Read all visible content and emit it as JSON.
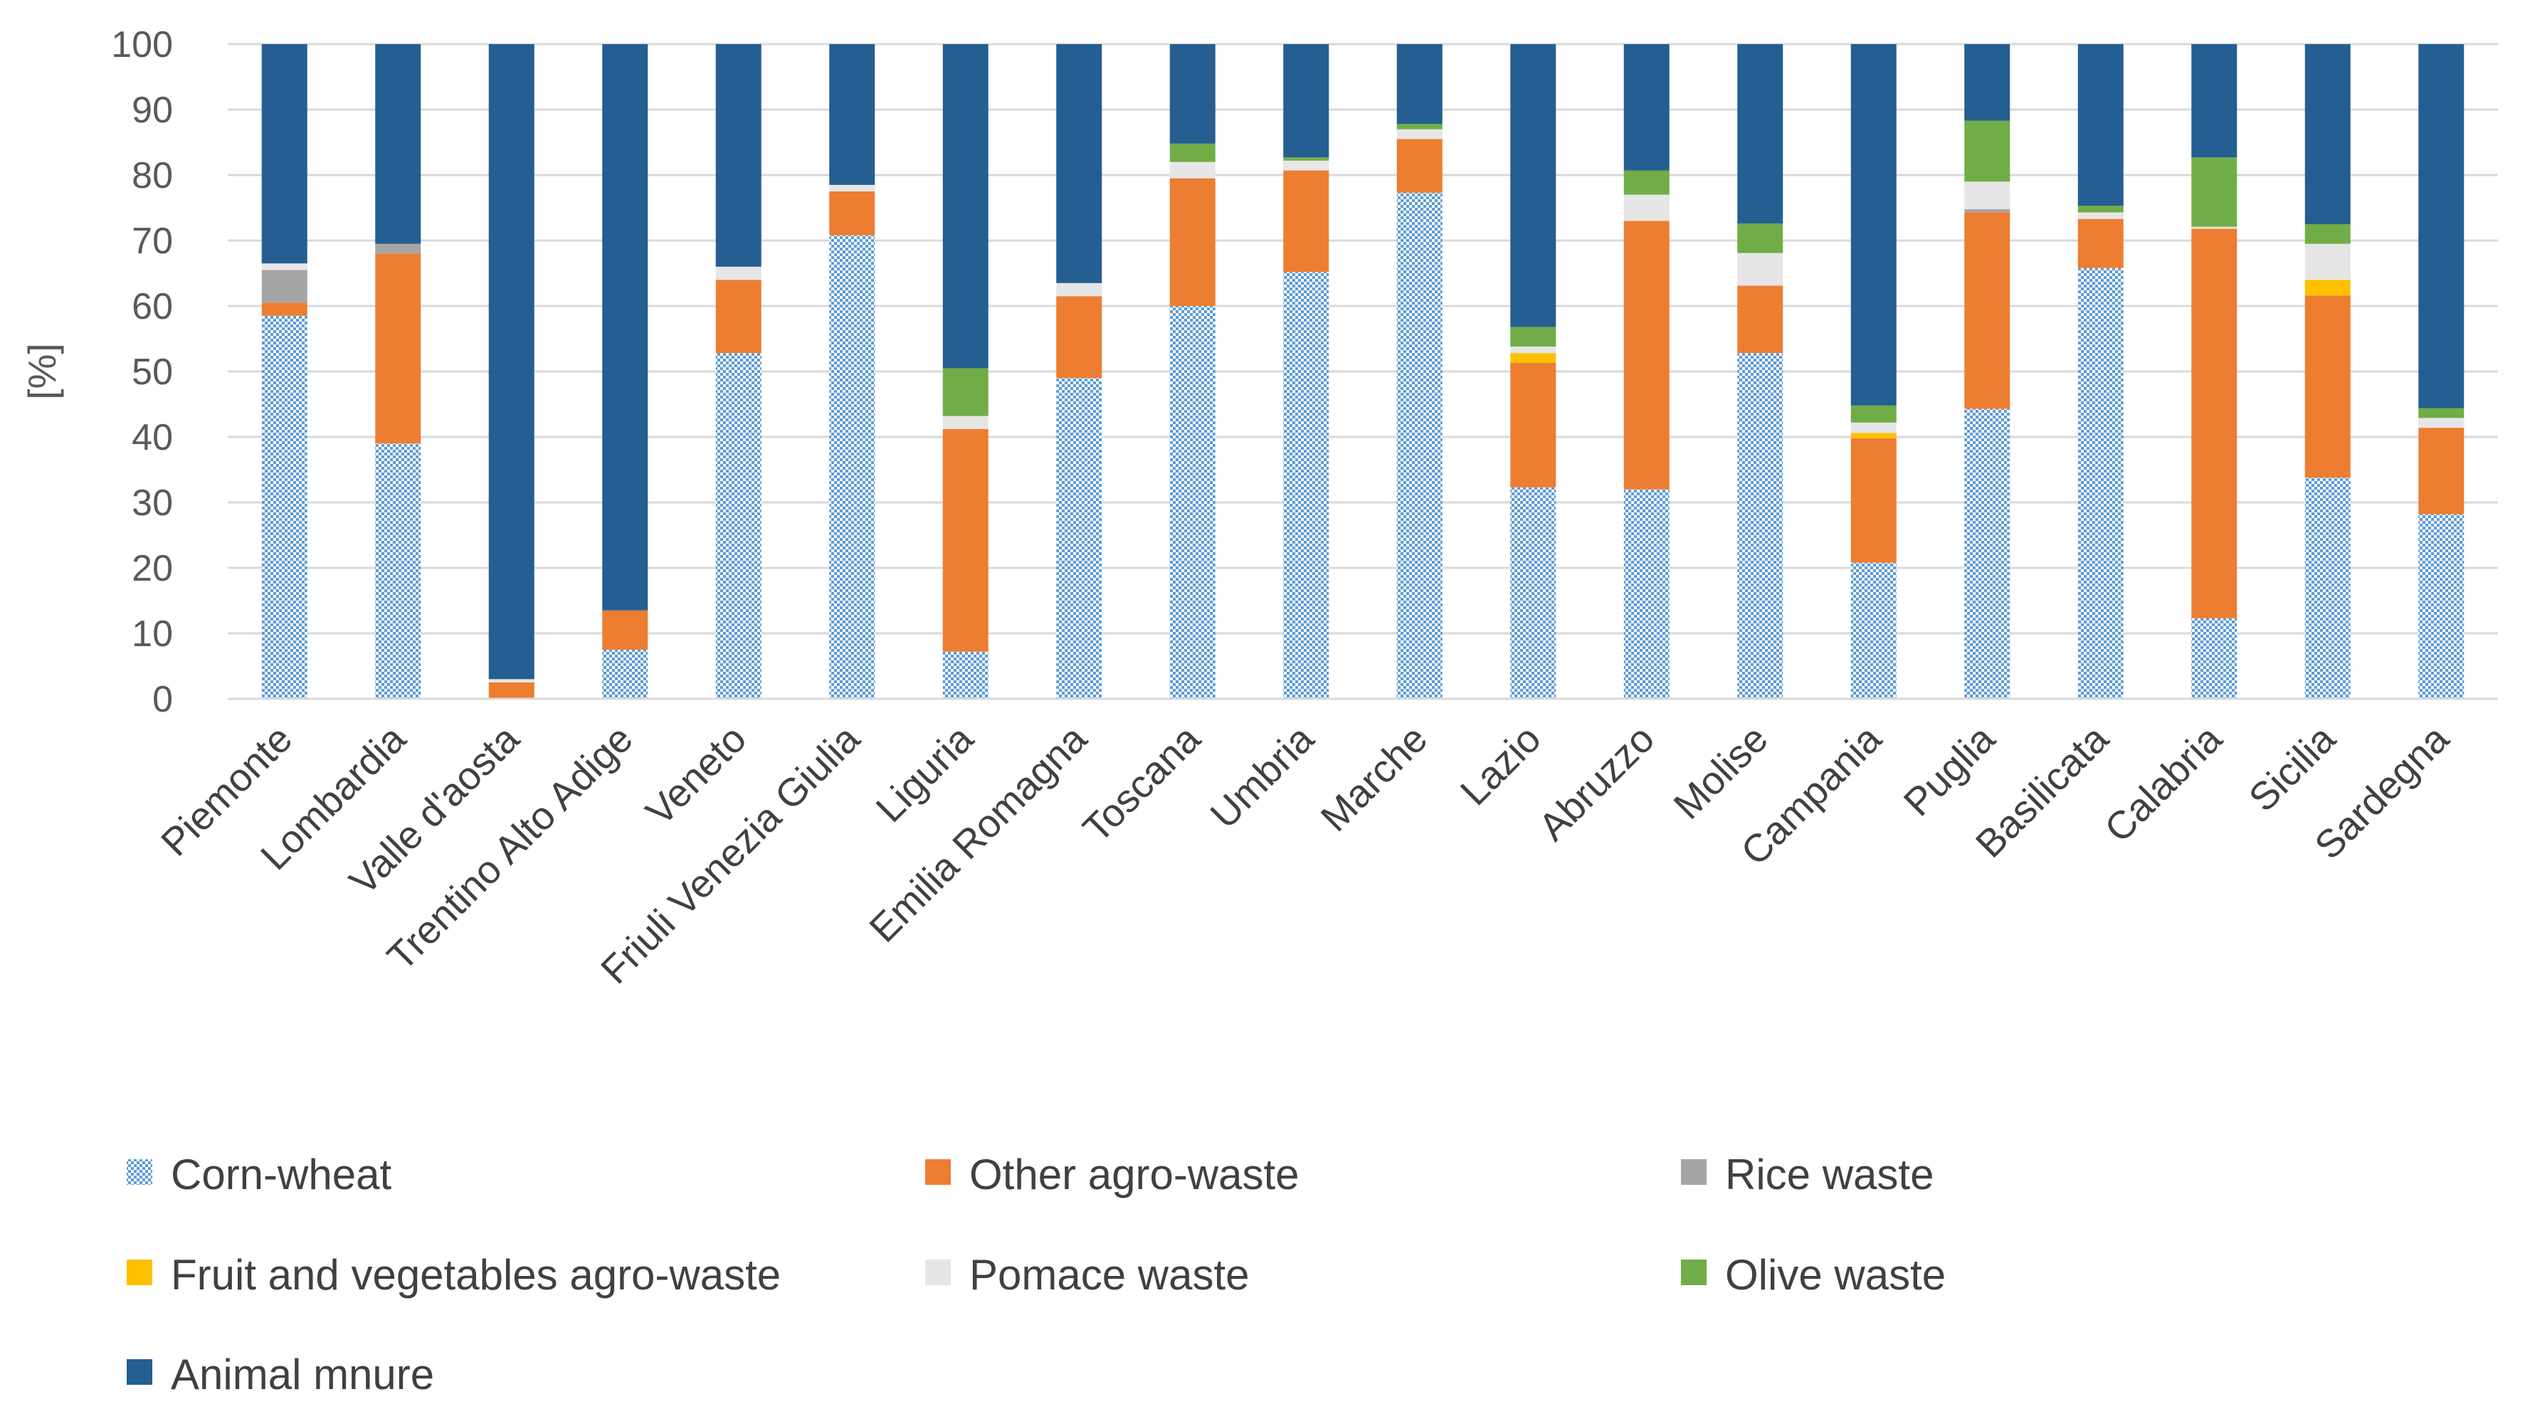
{
  "chart_data": {
    "type": "bar",
    "stacked": true,
    "title": "",
    "xlabel": "",
    "ylabel": "[%]",
    "ylim": [
      0,
      100
    ],
    "yticks": [
      0,
      10,
      20,
      30,
      40,
      50,
      60,
      70,
      80,
      90,
      100
    ],
    "grid": true,
    "legend_position": "bottom",
    "categories": [
      "Piemonte",
      "Lombardia",
      "Valle d'aosta",
      "Trentino Alto Adige",
      "Veneto",
      "Friuli Venezia Giulia",
      "Liguria",
      "Emilia Romagna",
      "Toscana",
      "Umbria",
      "Marche",
      "Lazio",
      "Abruzzo",
      "Molise",
      "Campania",
      "Puglia",
      "Basilicata",
      "Calabria",
      "Sicilia",
      "Sardegna"
    ],
    "series": [
      {
        "name": "Corn-wheat",
        "color": "#5b9bd5",
        "pattern": "checker",
        "values": [
          58.5,
          39.0,
          0.0,
          7.5,
          52.8,
          70.8,
          7.2,
          49.0,
          60.0,
          65.2,
          77.3,
          32.3,
          32.0,
          52.8,
          20.8,
          44.3,
          65.8,
          12.3,
          33.8,
          28.2
        ]
      },
      {
        "name": "Other agro-waste",
        "color": "#ed7d31",
        "values": [
          2.0,
          29.0,
          2.5,
          6.0,
          11.2,
          6.7,
          34.0,
          12.5,
          19.5,
          15.5,
          8.2,
          19.0,
          41.0,
          10.3,
          19.0,
          30.0,
          7.5,
          59.5,
          27.8,
          13.2
        ]
      },
      {
        "name": "Rice waste",
        "color": "#a5a5a5",
        "values": [
          5.0,
          1.5,
          0.0,
          0.0,
          0.0,
          0.0,
          0.0,
          0.0,
          0.0,
          0.0,
          0.0,
          0.0,
          0.0,
          0.0,
          0.0,
          0.5,
          0.0,
          0.0,
          0.0,
          0.0
        ]
      },
      {
        "name": "Fruit and vegetables agro-waste",
        "color": "#ffc000",
        "values": [
          0.0,
          0.0,
          0.0,
          0.0,
          0.0,
          0.0,
          0.0,
          0.0,
          0.0,
          0.0,
          0.0,
          1.5,
          0.0,
          0.0,
          0.8,
          0.0,
          0.0,
          0.0,
          2.4,
          0.0
        ]
      },
      {
        "name": "Pomace waste",
        "color": "#e7e6e6",
        "values": [
          1.0,
          0.0,
          0.5,
          0.0,
          2.0,
          1.0,
          2.0,
          2.0,
          2.5,
          1.5,
          1.5,
          1.0,
          4.0,
          5.0,
          1.6,
          4.2,
          1.0,
          0.3,
          5.5,
          1.5
        ]
      },
      {
        "name": "Olive waste",
        "color": "#70ad47",
        "values": [
          0.0,
          0.0,
          0.0,
          0.0,
          0.0,
          0.0,
          7.3,
          0.0,
          2.8,
          0.5,
          0.8,
          3.0,
          3.7,
          4.5,
          2.6,
          9.3,
          1.0,
          10.6,
          3.0,
          1.5
        ]
      },
      {
        "name": "Animal mnure",
        "color": "#255e91",
        "values": [
          33.5,
          30.5,
          97.0,
          86.5,
          34.0,
          21.5,
          49.5,
          36.5,
          15.2,
          17.3,
          12.2,
          43.2,
          19.3,
          27.4,
          55.2,
          11.7,
          24.7,
          17.3,
          27.5,
          55.6
        ]
      }
    ]
  }
}
